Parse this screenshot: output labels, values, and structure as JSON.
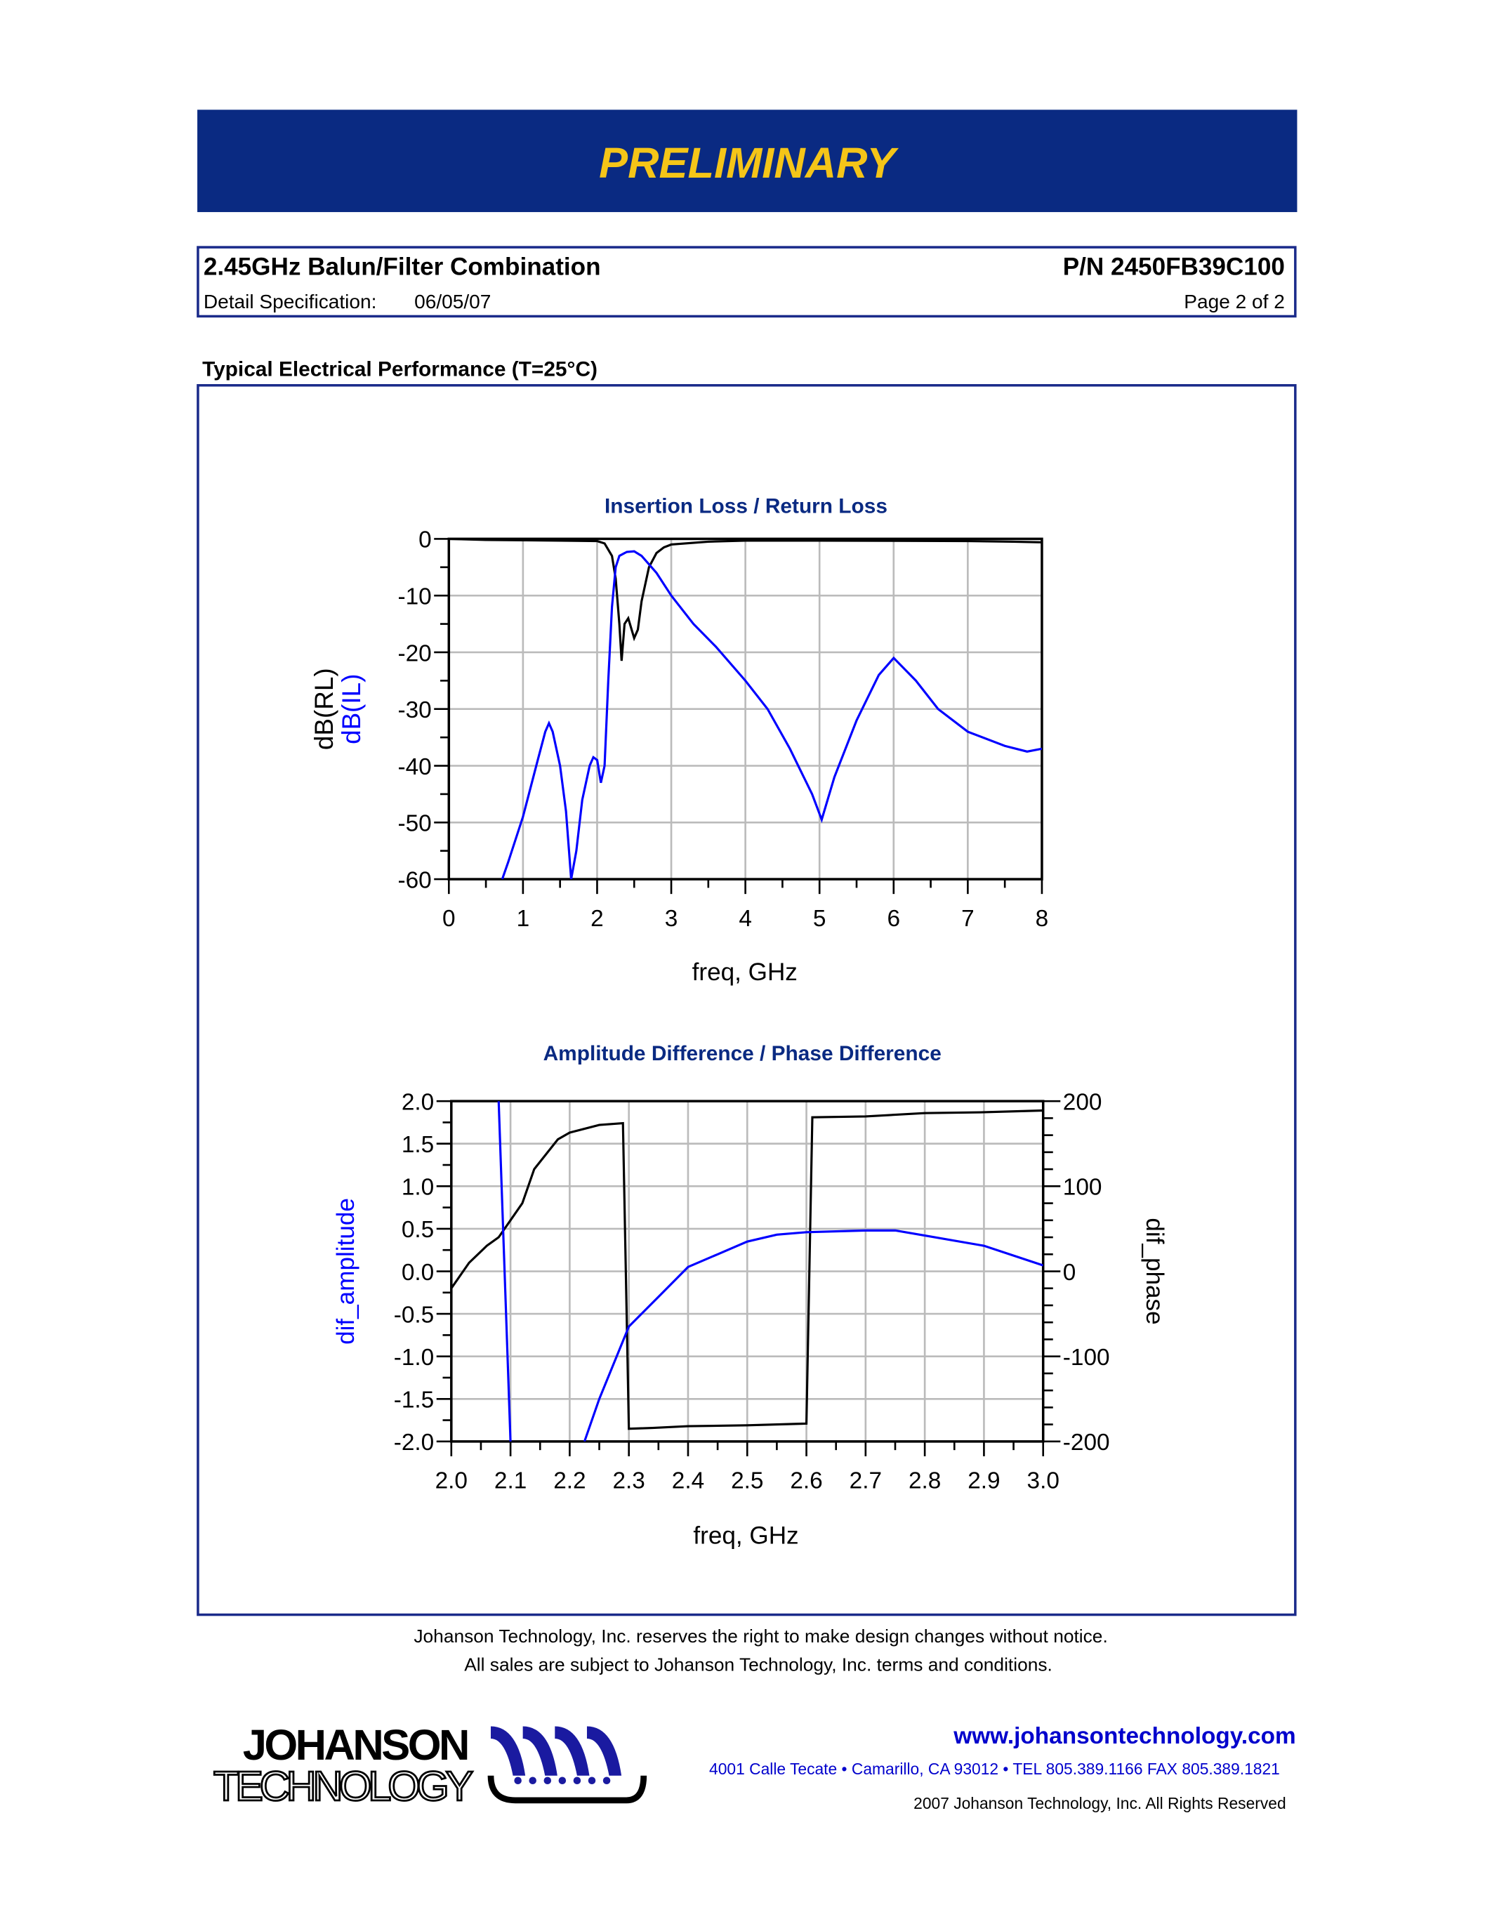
{
  "banner": {
    "title": "PRELIMINARY",
    "bg": "#0a2a82",
    "fg": "#f5c518"
  },
  "spec": {
    "product": "2.45GHz Balun/Filter Combination",
    "pn": "P/N 2450FB39C100",
    "detail_label": "Detail Specification:",
    "date": "06/05/07",
    "page": "Page 2 of 2"
  },
  "section_title": "Typical Electrical Performance (T=25°C)",
  "chart_data": [
    {
      "type": "line",
      "title": "Insertion Loss / Return Loss",
      "xlabel": "freq, GHz",
      "ylabel": "dB(RL)",
      "ylabel2": "dB(IL)",
      "xlim": [
        0,
        8
      ],
      "ylim": [
        -60,
        0
      ],
      "grid": true,
      "xticks": [
        "0",
        "1",
        "2",
        "3",
        "4",
        "5",
        "6",
        "7",
        "8"
      ],
      "yticks": [
        "0",
        "-10",
        "-20",
        "-30",
        "-40",
        "-50",
        "-60"
      ],
      "series": [
        {
          "name": "dB(RL)",
          "color": "#000000",
          "points": [
            [
              0,
              0
            ],
            [
              0.5,
              -0.2
            ],
            [
              1.5,
              -0.3
            ],
            [
              2.0,
              -0.4
            ],
            [
              2.1,
              -0.8
            ],
            [
              2.2,
              -3
            ],
            [
              2.25,
              -7
            ],
            [
              2.3,
              -15
            ],
            [
              2.33,
              -21.5
            ],
            [
              2.37,
              -15
            ],
            [
              2.42,
              -14
            ],
            [
              2.5,
              -17.5
            ],
            [
              2.55,
              -16
            ],
            [
              2.6,
              -11
            ],
            [
              2.7,
              -5
            ],
            [
              2.8,
              -2.5
            ],
            [
              2.9,
              -1.5
            ],
            [
              3.0,
              -1
            ],
            [
              3.5,
              -0.5
            ],
            [
              4,
              -0.3
            ],
            [
              5,
              -0.3
            ],
            [
              7,
              -0.4
            ],
            [
              7.6,
              -0.5
            ],
            [
              8,
              -0.6
            ]
          ]
        },
        {
          "name": "dB(IL)",
          "color": "#0000ff",
          "points": [
            [
              0.72,
              -60
            ],
            [
              0.8,
              -57
            ],
            [
              1.0,
              -49
            ],
            [
              1.1,
              -44
            ],
            [
              1.2,
              -39
            ],
            [
              1.3,
              -34
            ],
            [
              1.35,
              -32.5
            ],
            [
              1.4,
              -34
            ],
            [
              1.5,
              -40
            ],
            [
              1.58,
              -48
            ],
            [
              1.65,
              -60
            ],
            [
              1.72,
              -55
            ],
            [
              1.8,
              -46
            ],
            [
              1.9,
              -40
            ],
            [
              1.95,
              -38.5
            ],
            [
              2.0,
              -39
            ],
            [
              2.05,
              -43
            ],
            [
              2.1,
              -40
            ],
            [
              2.15,
              -25
            ],
            [
              2.2,
              -12
            ],
            [
              2.25,
              -5
            ],
            [
              2.3,
              -3
            ],
            [
              2.4,
              -2.3
            ],
            [
              2.5,
              -2.2
            ],
            [
              2.6,
              -3
            ],
            [
              2.8,
              -6
            ],
            [
              3.0,
              -10
            ],
            [
              3.3,
              -15
            ],
            [
              3.6,
              -19
            ],
            [
              4.0,
              -25
            ],
            [
              4.3,
              -30
            ],
            [
              4.6,
              -37
            ],
            [
              4.9,
              -45
            ],
            [
              5.03,
              -49.5
            ],
            [
              5.2,
              -42
            ],
            [
              5.5,
              -32
            ],
            [
              5.8,
              -24
            ],
            [
              6.0,
              -21
            ],
            [
              6.3,
              -25
            ],
            [
              6.6,
              -30
            ],
            [
              7.0,
              -34
            ],
            [
              7.5,
              -36.5
            ],
            [
              7.8,
              -37.5
            ],
            [
              8,
              -37
            ]
          ]
        }
      ]
    },
    {
      "type": "line",
      "title": "Amplitude Difference / Phase Difference",
      "xlabel": "freq, GHz",
      "ylabel": "dif_amplitude",
      "ylabel_right": "dif_phase",
      "xlim": [
        2.0,
        3.0
      ],
      "ylim": [
        -2.0,
        2.0
      ],
      "ylim_right": [
        -200,
        200
      ],
      "grid": true,
      "xticks": [
        "2.0",
        "2.1",
        "2.2",
        "2.3",
        "2.4",
        "2.5",
        "2.6",
        "2.7",
        "2.8",
        "2.9",
        "3.0"
      ],
      "yticks": [
        "2.0",
        "1.5",
        "1.0",
        "0.5",
        "0.0",
        "-0.5",
        "-1.0",
        "-1.5",
        "-2.0"
      ],
      "yticks_right": [
        "200",
        "100",
        "0",
        "-100",
        "-200"
      ],
      "series": [
        {
          "name": "dif_phase",
          "axis": "right",
          "color": "#000000",
          "points": [
            [
              2.0,
              -20
            ],
            [
              2.03,
              10
            ],
            [
              2.06,
              30
            ],
            [
              2.08,
              40
            ],
            [
              2.1,
              60
            ],
            [
              2.12,
              80
            ],
            [
              2.14,
              120
            ],
            [
              2.18,
              155
            ],
            [
              2.2,
              163
            ],
            [
              2.25,
              172
            ],
            [
              2.29,
              174
            ],
            [
              2.3,
              -185
            ],
            [
              2.34,
              -184
            ],
            [
              2.4,
              -182
            ],
            [
              2.5,
              -181
            ],
            [
              2.6,
              -179
            ],
            [
              2.61,
              181
            ],
            [
              2.7,
              182
            ],
            [
              2.8,
              186
            ],
            [
              2.9,
              187
            ],
            [
              3.0,
              189
            ]
          ]
        },
        {
          "name": "dif_amplitude",
          "axis": "left",
          "color": "#0000ff",
          "segments": [
            [
              [
                2.08,
                2.0
              ],
              [
                2.1,
                -2.0
              ]
            ],
            [
              [
                2.225,
                -2.0
              ],
              [
                2.25,
                -1.5
              ],
              [
                2.3,
                -0.65
              ],
              [
                2.35,
                -0.3
              ],
              [
                2.4,
                0.05
              ],
              [
                2.45,
                0.2
              ],
              [
                2.5,
                0.35
              ],
              [
                2.55,
                0.43
              ],
              [
                2.6,
                0.46
              ],
              [
                2.7,
                0.48
              ],
              [
                2.75,
                0.48
              ],
              [
                2.8,
                0.42
              ],
              [
                2.9,
                0.3
              ],
              [
                3.0,
                0.07
              ]
            ]
          ]
        }
      ]
    }
  ],
  "disclaimer": [
    "Johanson Technology, Inc. reserves the right to make design changes without notice.",
    "All sales are subject to Johanson Technology, Inc. terms and conditions."
  ],
  "footer": {
    "logo_line1": "JOHANSON",
    "logo_line2": "TECHNOLOGY",
    "website": "www.johansontechnology.com",
    "address": "4001 Calle Tecate • Camarillo, CA 93012 • TEL 805.389.1166 FAX 805.389.1821",
    "copyright": "2007 Johanson Technology, Inc.  All Rights Reserved",
    "link_color": "#0000cc"
  }
}
